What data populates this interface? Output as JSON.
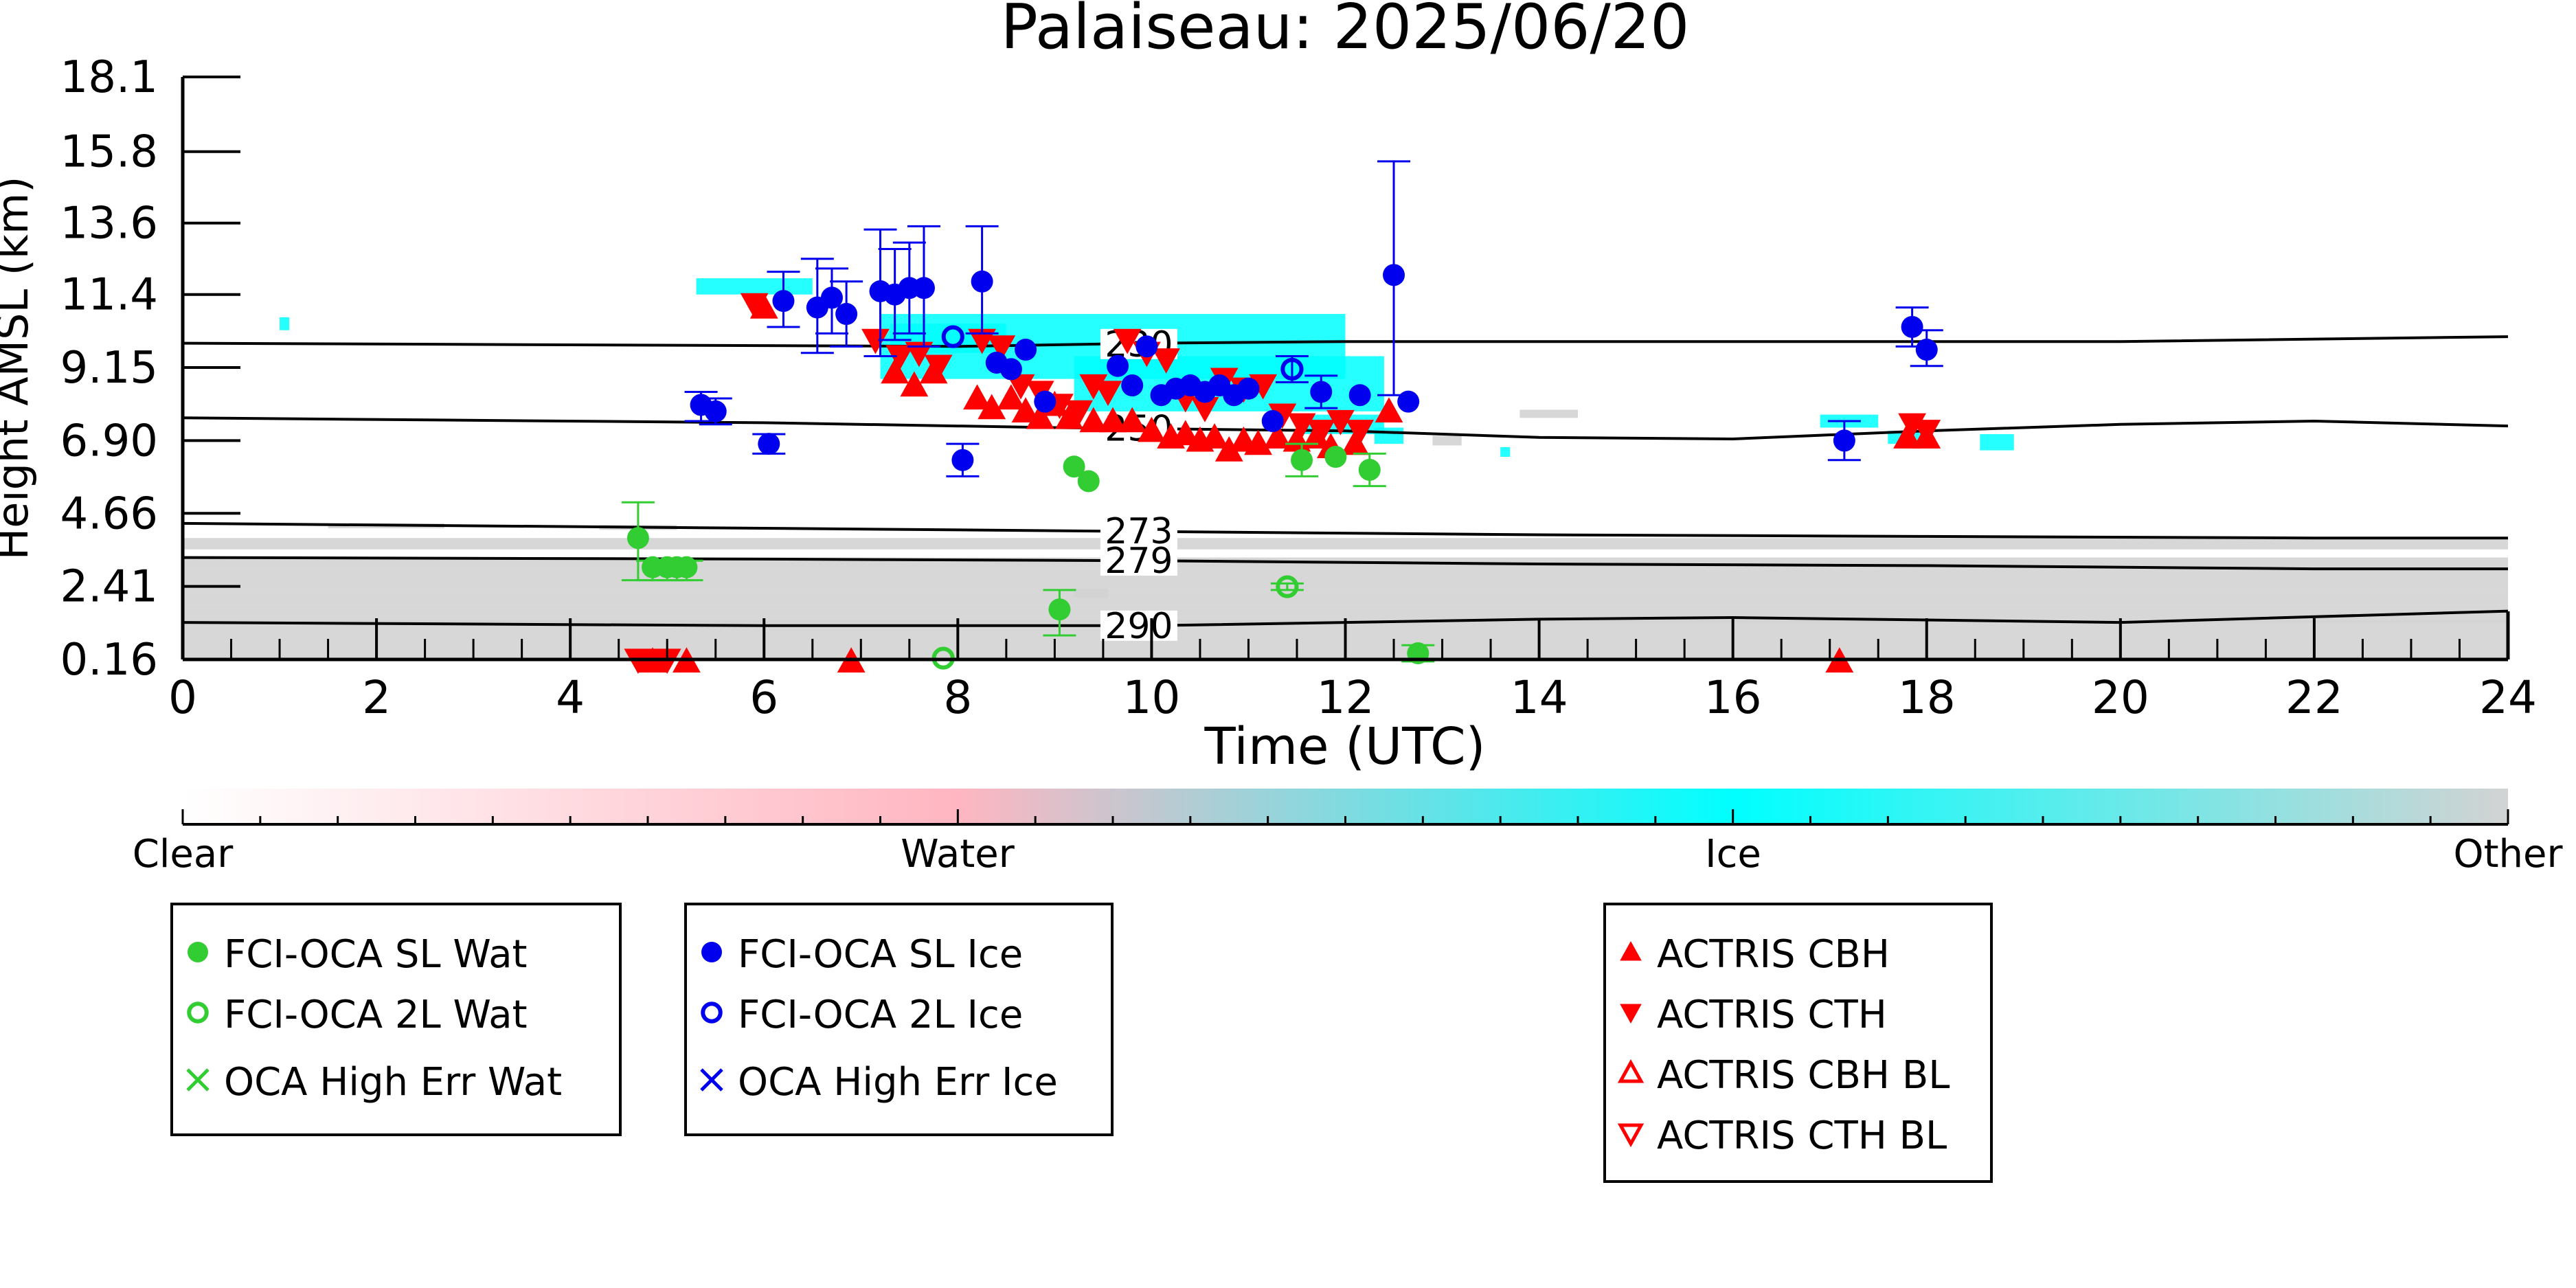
{
  "chart_data": {
    "type": "scatter",
    "title": "Palaiseau: 2025/06/20",
    "xlabel": "Time (UTC)",
    "ylabel": "Height AMSL (km)",
    "xlim": [
      0,
      24
    ],
    "ylim": [
      0.16,
      18.1
    ],
    "x_ticks": [
      "0",
      "2",
      "4",
      "6",
      "8",
      "10",
      "12",
      "14",
      "16",
      "18",
      "20",
      "22",
      "24"
    ],
    "y_ticks": [
      "0.16",
      "2.41",
      "4.66",
      "6.90",
      "9.15",
      "11.4",
      "13.6",
      "15.8",
      "18.1"
    ],
    "y_tick_values": [
      0.16,
      2.41,
      4.66,
      6.9,
      9.15,
      11.4,
      13.6,
      15.8,
      18.1
    ],
    "grid": false,
    "colors": {
      "clear": "#ffffff",
      "water": "#ffb6c1",
      "ice": "#00ffff",
      "other": "#d3d3d3",
      "oca_water": "#32cd32",
      "oca_ice": "#0000ee",
      "actris": "#ff0000"
    },
    "colorbar": {
      "labels": [
        "Clear",
        "Water",
        "Ice",
        "Other"
      ]
    },
    "isotherms": [
      {
        "label": "230",
        "label_x": 9.5,
        "points": [
          [
            0,
            9.9
          ],
          [
            4,
            9.85
          ],
          [
            8,
            9.8
          ],
          [
            10,
            9.9
          ],
          [
            12,
            9.95
          ],
          [
            16,
            9.95
          ],
          [
            20,
            9.95
          ],
          [
            24,
            10.1
          ]
        ]
      },
      {
        "label": "250",
        "label_x": 9.5,
        "points": [
          [
            0,
            7.6
          ],
          [
            6,
            7.45
          ],
          [
            9,
            7.3
          ],
          [
            12,
            7.2
          ],
          [
            14,
            7.0
          ],
          [
            16,
            6.95
          ],
          [
            18,
            7.2
          ],
          [
            20,
            7.4
          ],
          [
            22,
            7.5
          ],
          [
            24,
            7.35
          ]
        ]
      },
      {
        "label": "273",
        "label_x": 9.5,
        "points": [
          [
            0,
            4.35
          ],
          [
            6,
            4.2
          ],
          [
            10,
            4.1
          ],
          [
            14,
            4.0
          ],
          [
            18,
            3.95
          ],
          [
            22,
            3.9
          ],
          [
            24,
            3.9
          ]
        ]
      },
      {
        "label": "279",
        "label_x": 9.5,
        "points": [
          [
            0,
            3.3
          ],
          [
            6,
            3.25
          ],
          [
            10,
            3.2
          ],
          [
            14,
            3.1
          ],
          [
            18,
            3.05
          ],
          [
            22,
            2.95
          ],
          [
            24,
            2.95
          ]
        ]
      },
      {
        "label": "290",
        "label_x": 9.5,
        "points": [
          [
            0,
            1.3
          ],
          [
            6,
            1.2
          ],
          [
            10,
            1.2
          ],
          [
            14,
            1.4
          ],
          [
            16,
            1.45
          ],
          [
            20,
            1.3
          ],
          [
            24,
            1.65
          ]
        ]
      }
    ],
    "series": [
      {
        "name": "FCI-OCA SL Wat",
        "marker": "filled-circle",
        "color": "#32cd32",
        "points": [
          [
            4.7,
            3.9,
            5.0,
            2.6
          ],
          [
            4.85,
            3.0,
            3.2,
            2.6
          ],
          [
            5.0,
            3.0,
            3.2,
            2.6
          ],
          [
            5.1,
            3.0,
            3.2,
            2.6
          ],
          [
            5.2,
            3.0,
            3.2,
            2.6
          ],
          [
            9.05,
            1.7,
            2.3,
            0.9
          ],
          [
            9.2,
            6.1,
            null,
            null
          ],
          [
            9.35,
            5.65,
            null,
            null
          ],
          [
            11.55,
            6.3,
            6.8,
            5.8
          ],
          [
            11.9,
            6.4,
            null,
            null
          ],
          [
            12.25,
            6.0,
            6.5,
            5.5
          ],
          [
            12.75,
            0.35,
            0.6,
            0.1
          ]
        ]
      },
      {
        "name": "FCI-OCA 2L Wat",
        "marker": "open-circle",
        "color": "#32cd32",
        "points": [
          [
            7.85,
            0.2,
            null,
            null
          ],
          [
            11.4,
            2.4,
            2.5,
            2.3
          ]
        ]
      },
      {
        "name": "OCA High Err Wat",
        "marker": "x",
        "color": "#32cd32",
        "points": []
      },
      {
        "name": "FCI-OCA SL Ice",
        "marker": "filled-circle",
        "color": "#0000ee",
        "points": [
          [
            6.05,
            6.8,
            7.1,
            6.5
          ],
          [
            6.2,
            11.2,
            12.1,
            10.4
          ],
          [
            6.55,
            11.0,
            12.5,
            9.6
          ],
          [
            6.7,
            11.3,
            12.2,
            10.2
          ],
          [
            6.85,
            10.8,
            11.8,
            9.8
          ],
          [
            7.2,
            11.5,
            13.4,
            9.5
          ],
          [
            7.35,
            11.4,
            12.8,
            10.0
          ],
          [
            7.5,
            11.6,
            13.0,
            10.2
          ],
          [
            7.65,
            11.6,
            13.5,
            9.8
          ],
          [
            5.35,
            8.0,
            8.4,
            7.5
          ],
          [
            5.5,
            7.8,
            8.2,
            7.4
          ],
          [
            8.05,
            6.3,
            6.8,
            5.8
          ],
          [
            8.25,
            11.8,
            13.5,
            10.2
          ],
          [
            8.4,
            9.3,
            null,
            null
          ],
          [
            8.55,
            9.1,
            null,
            null
          ],
          [
            8.7,
            9.7,
            null,
            null
          ],
          [
            8.9,
            8.1,
            null,
            null
          ],
          [
            9.65,
            9.2,
            null,
            null
          ],
          [
            9.8,
            8.6,
            null,
            null
          ],
          [
            9.95,
            9.8,
            null,
            null
          ],
          [
            10.1,
            8.3,
            null,
            null
          ],
          [
            10.25,
            8.5,
            null,
            null
          ],
          [
            10.4,
            8.6,
            null,
            null
          ],
          [
            10.55,
            8.4,
            null,
            null
          ],
          [
            10.7,
            8.6,
            null,
            null
          ],
          [
            10.85,
            8.3,
            null,
            null
          ],
          [
            11.0,
            8.5,
            null,
            null
          ],
          [
            11.25,
            7.5,
            null,
            null
          ],
          [
            11.75,
            8.4,
            8.9,
            7.9
          ],
          [
            12.15,
            8.3,
            null,
            null
          ],
          [
            12.5,
            12.0,
            15.5,
            8.3
          ],
          [
            12.65,
            8.1,
            null,
            null
          ],
          [
            17.15,
            6.9,
            7.5,
            6.3
          ],
          [
            17.85,
            10.4,
            11.0,
            9.8
          ],
          [
            18.0,
            9.7,
            10.3,
            9.2
          ]
        ]
      },
      {
        "name": "FCI-OCA 2L Ice",
        "marker": "open-circle",
        "color": "#0000ee",
        "points": [
          [
            7.95,
            10.1,
            null,
            null
          ],
          [
            11.45,
            9.1,
            9.5,
            8.7
          ]
        ]
      },
      {
        "name": "OCA High Err Ice",
        "marker": "x",
        "color": "#0000ee",
        "points": []
      },
      {
        "name": "ACTRIS CBH",
        "marker": "filled-triangle-up",
        "color": "#ff0000",
        "points": [
          [
            6.0,
            11.0
          ],
          [
            7.35,
            9.0
          ],
          [
            7.55,
            8.6
          ],
          [
            7.75,
            9.0
          ],
          [
            8.2,
            8.2
          ],
          [
            8.35,
            7.9
          ],
          [
            8.55,
            8.2
          ],
          [
            8.7,
            7.8
          ],
          [
            8.85,
            7.6
          ],
          [
            9.0,
            8.0
          ],
          [
            9.15,
            7.6
          ],
          [
            9.4,
            7.5
          ],
          [
            9.6,
            7.5
          ],
          [
            9.8,
            7.5
          ],
          [
            10.0,
            7.2
          ],
          [
            10.2,
            7.0
          ],
          [
            10.35,
            7.1
          ],
          [
            10.5,
            6.9
          ],
          [
            10.65,
            7.0
          ],
          [
            10.8,
            6.6
          ],
          [
            10.95,
            6.9
          ],
          [
            11.1,
            6.8
          ],
          [
            11.3,
            7.0
          ],
          [
            11.5,
            6.9
          ],
          [
            11.7,
            7.0
          ],
          [
            11.85,
            6.7
          ],
          [
            12.1,
            6.8
          ],
          [
            12.45,
            7.8
          ],
          [
            17.8,
            7.0
          ],
          [
            18.0,
            7.0
          ],
          [
            4.85,
            0.1
          ],
          [
            5.2,
            0.1
          ],
          [
            6.9,
            0.1
          ],
          [
            17.1,
            0.1
          ]
        ]
      },
      {
        "name": "ACTRIS CTH",
        "marker": "filled-triangle-down",
        "color": "#ff0000",
        "points": [
          [
            5.9,
            11.1
          ],
          [
            7.15,
            10.0
          ],
          [
            7.4,
            9.5
          ],
          [
            7.6,
            9.6
          ],
          [
            7.8,
            9.2
          ],
          [
            8.25,
            10.0
          ],
          [
            8.45,
            9.8
          ],
          [
            8.65,
            8.6
          ],
          [
            8.85,
            8.4
          ],
          [
            9.05,
            8.0
          ],
          [
            9.25,
            7.8
          ],
          [
            9.4,
            8.6
          ],
          [
            9.55,
            8.4
          ],
          [
            9.75,
            10.0
          ],
          [
            9.95,
            9.6
          ],
          [
            10.15,
            9.4
          ],
          [
            10.35,
            8.2
          ],
          [
            10.55,
            7.9
          ],
          [
            10.75,
            8.8
          ],
          [
            10.95,
            8.5
          ],
          [
            11.15,
            8.6
          ],
          [
            11.35,
            7.7
          ],
          [
            11.55,
            7.4
          ],
          [
            11.75,
            7.2
          ],
          [
            11.95,
            7.5
          ],
          [
            12.15,
            7.2
          ],
          [
            17.85,
            7.4
          ],
          [
            18.0,
            7.2
          ],
          [
            4.7,
            0.15
          ],
          [
            5.0,
            0.15
          ]
        ]
      },
      {
        "name": "ACTRIS CBH BL",
        "marker": "open-triangle-up",
        "color": "#ff0000",
        "points": []
      },
      {
        "name": "ACTRIS CTH BL",
        "marker": "open-triangle-down",
        "color": "#ff0000",
        "points": []
      }
    ],
    "cloud_mask": {
      "ice": [
        [
          1.0,
          10.3,
          0.1,
          0.4
        ],
        [
          5.3,
          11.4,
          1.2,
          0.5
        ],
        [
          7.2,
          8.8,
          4.8,
          2.0
        ],
        [
          7.3,
          9.6,
          1.2,
          0.9
        ],
        [
          9.2,
          7.8,
          3.2,
          1.7
        ],
        [
          11.5,
          7.1,
          0.9,
          0.6
        ],
        [
          12.3,
          6.8,
          0.3,
          0.5
        ],
        [
          13.6,
          6.4,
          0.1,
          0.3
        ],
        [
          16.9,
          7.3,
          0.6,
          0.4
        ],
        [
          17.6,
          6.8,
          0.4,
          0.4
        ],
        [
          18.55,
          6.6,
          0.35,
          0.5
        ]
      ],
      "other": [
        [
          0,
          0.16,
          24,
          1.2
        ],
        [
          0,
          1.3,
          24,
          0.55
        ],
        [
          0,
          1.85,
          24,
          0.5
        ],
        [
          0,
          2.35,
          24,
          0.6
        ],
        [
          0,
          2.95,
          24,
          0.35
        ],
        [
          0,
          3.55,
          24,
          0.35
        ],
        [
          1.5,
          4.2,
          1.2,
          0.15
        ],
        [
          4.3,
          4.15,
          0.8,
          0.15
        ],
        [
          9.2,
          2.05,
          0.35,
          0.3
        ],
        [
          13.8,
          7.6,
          0.6,
          0.25
        ],
        [
          12.9,
          6.75,
          0.3,
          0.3
        ]
      ]
    }
  },
  "legend": [
    {
      "items": [
        {
          "label": "FCI-OCA SL Wat",
          "marker": "filled-circle",
          "color": "#32cd32"
        },
        {
          "label": "FCI-OCA 2L Wat",
          "marker": "open-circle",
          "color": "#32cd32"
        },
        {
          "label": "OCA High Err Wat",
          "marker": "x",
          "color": "#32cd32"
        }
      ]
    },
    {
      "items": [
        {
          "label": "FCI-OCA SL Ice",
          "marker": "filled-circle",
          "color": "#0000ee"
        },
        {
          "label": "FCI-OCA 2L Ice",
          "marker": "open-circle",
          "color": "#0000ee"
        },
        {
          "label": "OCA High Err Ice",
          "marker": "x",
          "color": "#0000ee"
        }
      ]
    },
    {
      "items": [
        {
          "label": "ACTRIS CBH",
          "marker": "filled-triangle-up",
          "color": "#ff0000"
        },
        {
          "label": "ACTRIS CTH",
          "marker": "filled-triangle-down",
          "color": "#ff0000"
        },
        {
          "label": "ACTRIS CBH BL",
          "marker": "open-triangle-up",
          "color": "#ff0000"
        },
        {
          "label": "ACTRIS CTH BL",
          "marker": "open-triangle-down",
          "color": "#ff0000"
        }
      ]
    }
  ]
}
